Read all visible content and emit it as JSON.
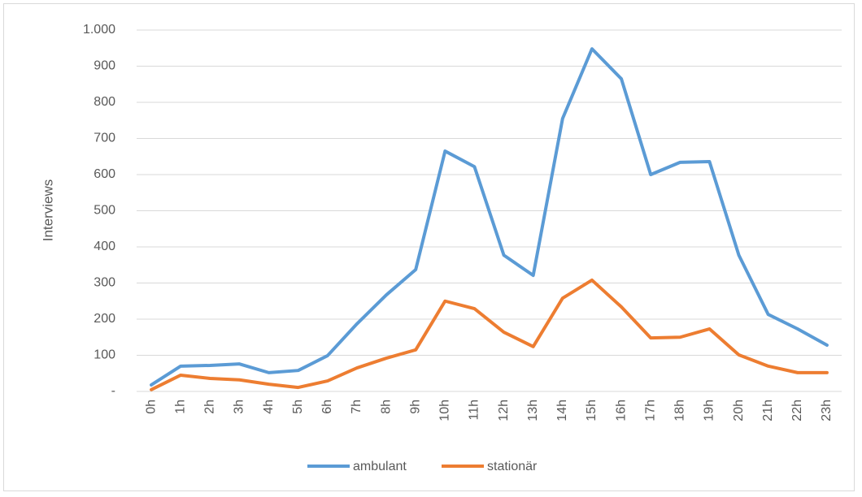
{
  "chart_data": {
    "type": "line",
    "y_axis_label": "Interviews",
    "categories": [
      "0h",
      "1h",
      "2h",
      "3h",
      "4h",
      "5h",
      "6h",
      "7h",
      "8h",
      "9h",
      "10h",
      "11h",
      "12h",
      "13h",
      "14h",
      "15h",
      "16h",
      "17h",
      "18h",
      "19h",
      "20h",
      "21h",
      "22h",
      "23h"
    ],
    "series": [
      {
        "name": "ambulant",
        "color": "#5b9bd5",
        "values": [
          18,
          70,
          72,
          76,
          52,
          58,
          99,
          187,
          267,
          337,
          665,
          622,
          377,
          321,
          755,
          948,
          865,
          600,
          634,
          636,
          377,
          213,
          173,
          128
        ]
      },
      {
        "name": "stationär",
        "color": "#ed7d31",
        "values": [
          5,
          45,
          36,
          32,
          20,
          11,
          29,
          65,
          92,
          115,
          250,
          229,
          164,
          124,
          258,
          308,
          234,
          148,
          150,
          173,
          101,
          70,
          52,
          52
        ]
      }
    ],
    "ylim": [
      0,
      1000
    ],
    "yticks": [
      {
        "value": 0,
        "label": "-"
      },
      100,
      200,
      300,
      400,
      500,
      600,
      700,
      800,
      900,
      {
        "value": 1000,
        "label": "1.000"
      }
    ],
    "grid": true,
    "legend": "bottom"
  }
}
